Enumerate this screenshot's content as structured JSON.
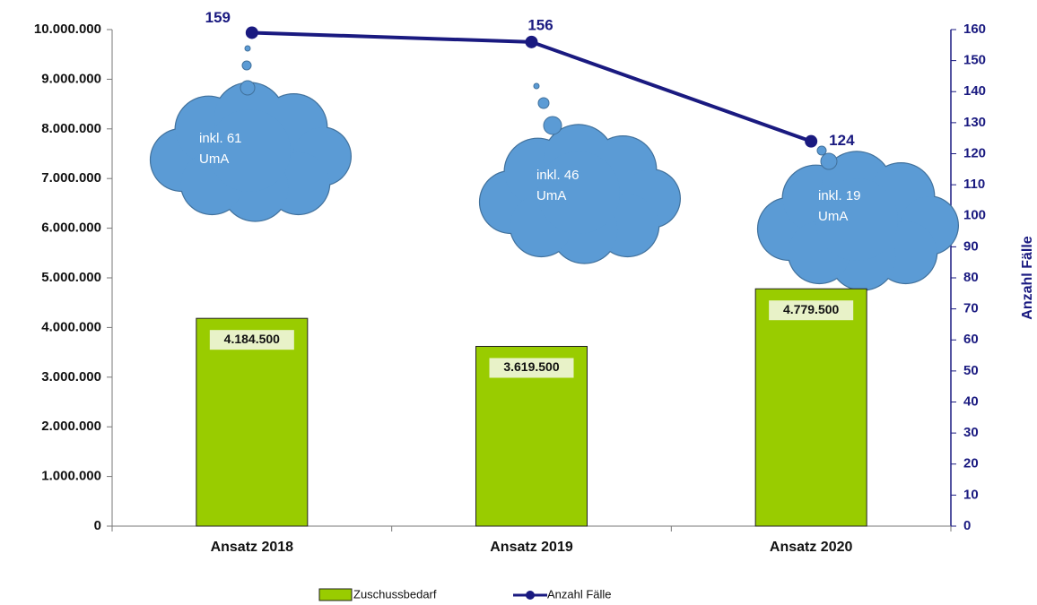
{
  "chart_data": {
    "type": "bar",
    "categories": [
      "Ansatz 2018",
      "Ansatz 2019",
      "Ansatz 2020"
    ],
    "series": [
      {
        "name": "Zuschussbedarf",
        "type": "bar",
        "color": "#99cc00",
        "values": [
          4184500,
          3619500,
          4779500
        ],
        "value_labels": [
          "4.184.500",
          "3.619.500",
          "4.779.500"
        ]
      },
      {
        "name": "Anzahl Fälle",
        "type": "line",
        "axis": "y2",
        "color": "#1a1a80",
        "values": [
          159,
          156,
          124
        ]
      }
    ],
    "ylim": [
      0,
      10000000
    ],
    "yticks": [
      0,
      {
        "value": 1000000,
        "label": "1.000.000"
      },
      {
        "value": 2000000,
        "label": "2.000.000"
      },
      {
        "value": 3000000,
        "label": "3.000.000"
      },
      {
        "value": 4000000,
        "label": "4.000.000"
      },
      {
        "value": 5000000,
        "label": "5.000.000"
      },
      {
        "value": 6000000,
        "label": "6.000.000"
      },
      {
        "value": 7000000,
        "label": "7.000.000"
      },
      {
        "value": 8000000,
        "label": "8.000.000"
      },
      {
        "value": 9000000,
        "label": "9.000.000"
      },
      {
        "value": 10000000,
        "label": "10.000.000"
      }
    ],
    "y2lim": [
      0,
      160
    ],
    "y2ticks": [
      0,
      10,
      20,
      30,
      40,
      50,
      60,
      70,
      80,
      90,
      100,
      110,
      120,
      130,
      140,
      150,
      160
    ],
    "y2label": "Anzahl Fälle",
    "annotations": [
      [
        "inkl. 61",
        "UmA"
      ],
      [
        "inkl. 46",
        "UmA"
      ],
      [
        "inkl. 19",
        "UmA"
      ]
    ],
    "grid": false,
    "legend": "bottom"
  }
}
